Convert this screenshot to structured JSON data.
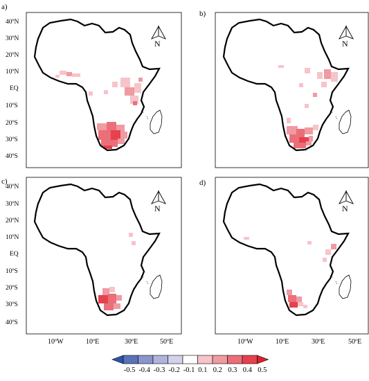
{
  "panels": [
    {
      "id": "a",
      "label": "a)"
    },
    {
      "id": "b",
      "label": "b)"
    },
    {
      "id": "c",
      "label": "c)"
    },
    {
      "id": "d",
      "label": "d)"
    }
  ],
  "north_arrow_label": "N",
  "lat_labels": [
    "40ºN",
    "30ºN",
    "20ºN",
    "10ºN",
    "EQ",
    "10ºS",
    "20ºS",
    "30ºS",
    "40ºS"
  ],
  "lon_labels": [
    "10ºW",
    "10ºE",
    "30ºE",
    "50ºE"
  ],
  "colorbar": {
    "labels": [
      "-0.5",
      "-0.4",
      "-0.3",
      "-0.2",
      "-0.1",
      "0.1",
      "0.2",
      "0.3",
      "0.4",
      "0.5"
    ],
    "colors": [
      "#2b55a8",
      "#5a72b8",
      "#8a95cb",
      "#b0b4da",
      "#d2d3ea",
      "#ffffff",
      "#f6c4c9",
      "#f09aa2",
      "#eb6f79",
      "#e6414e",
      "#e01f2d"
    ]
  }
}
